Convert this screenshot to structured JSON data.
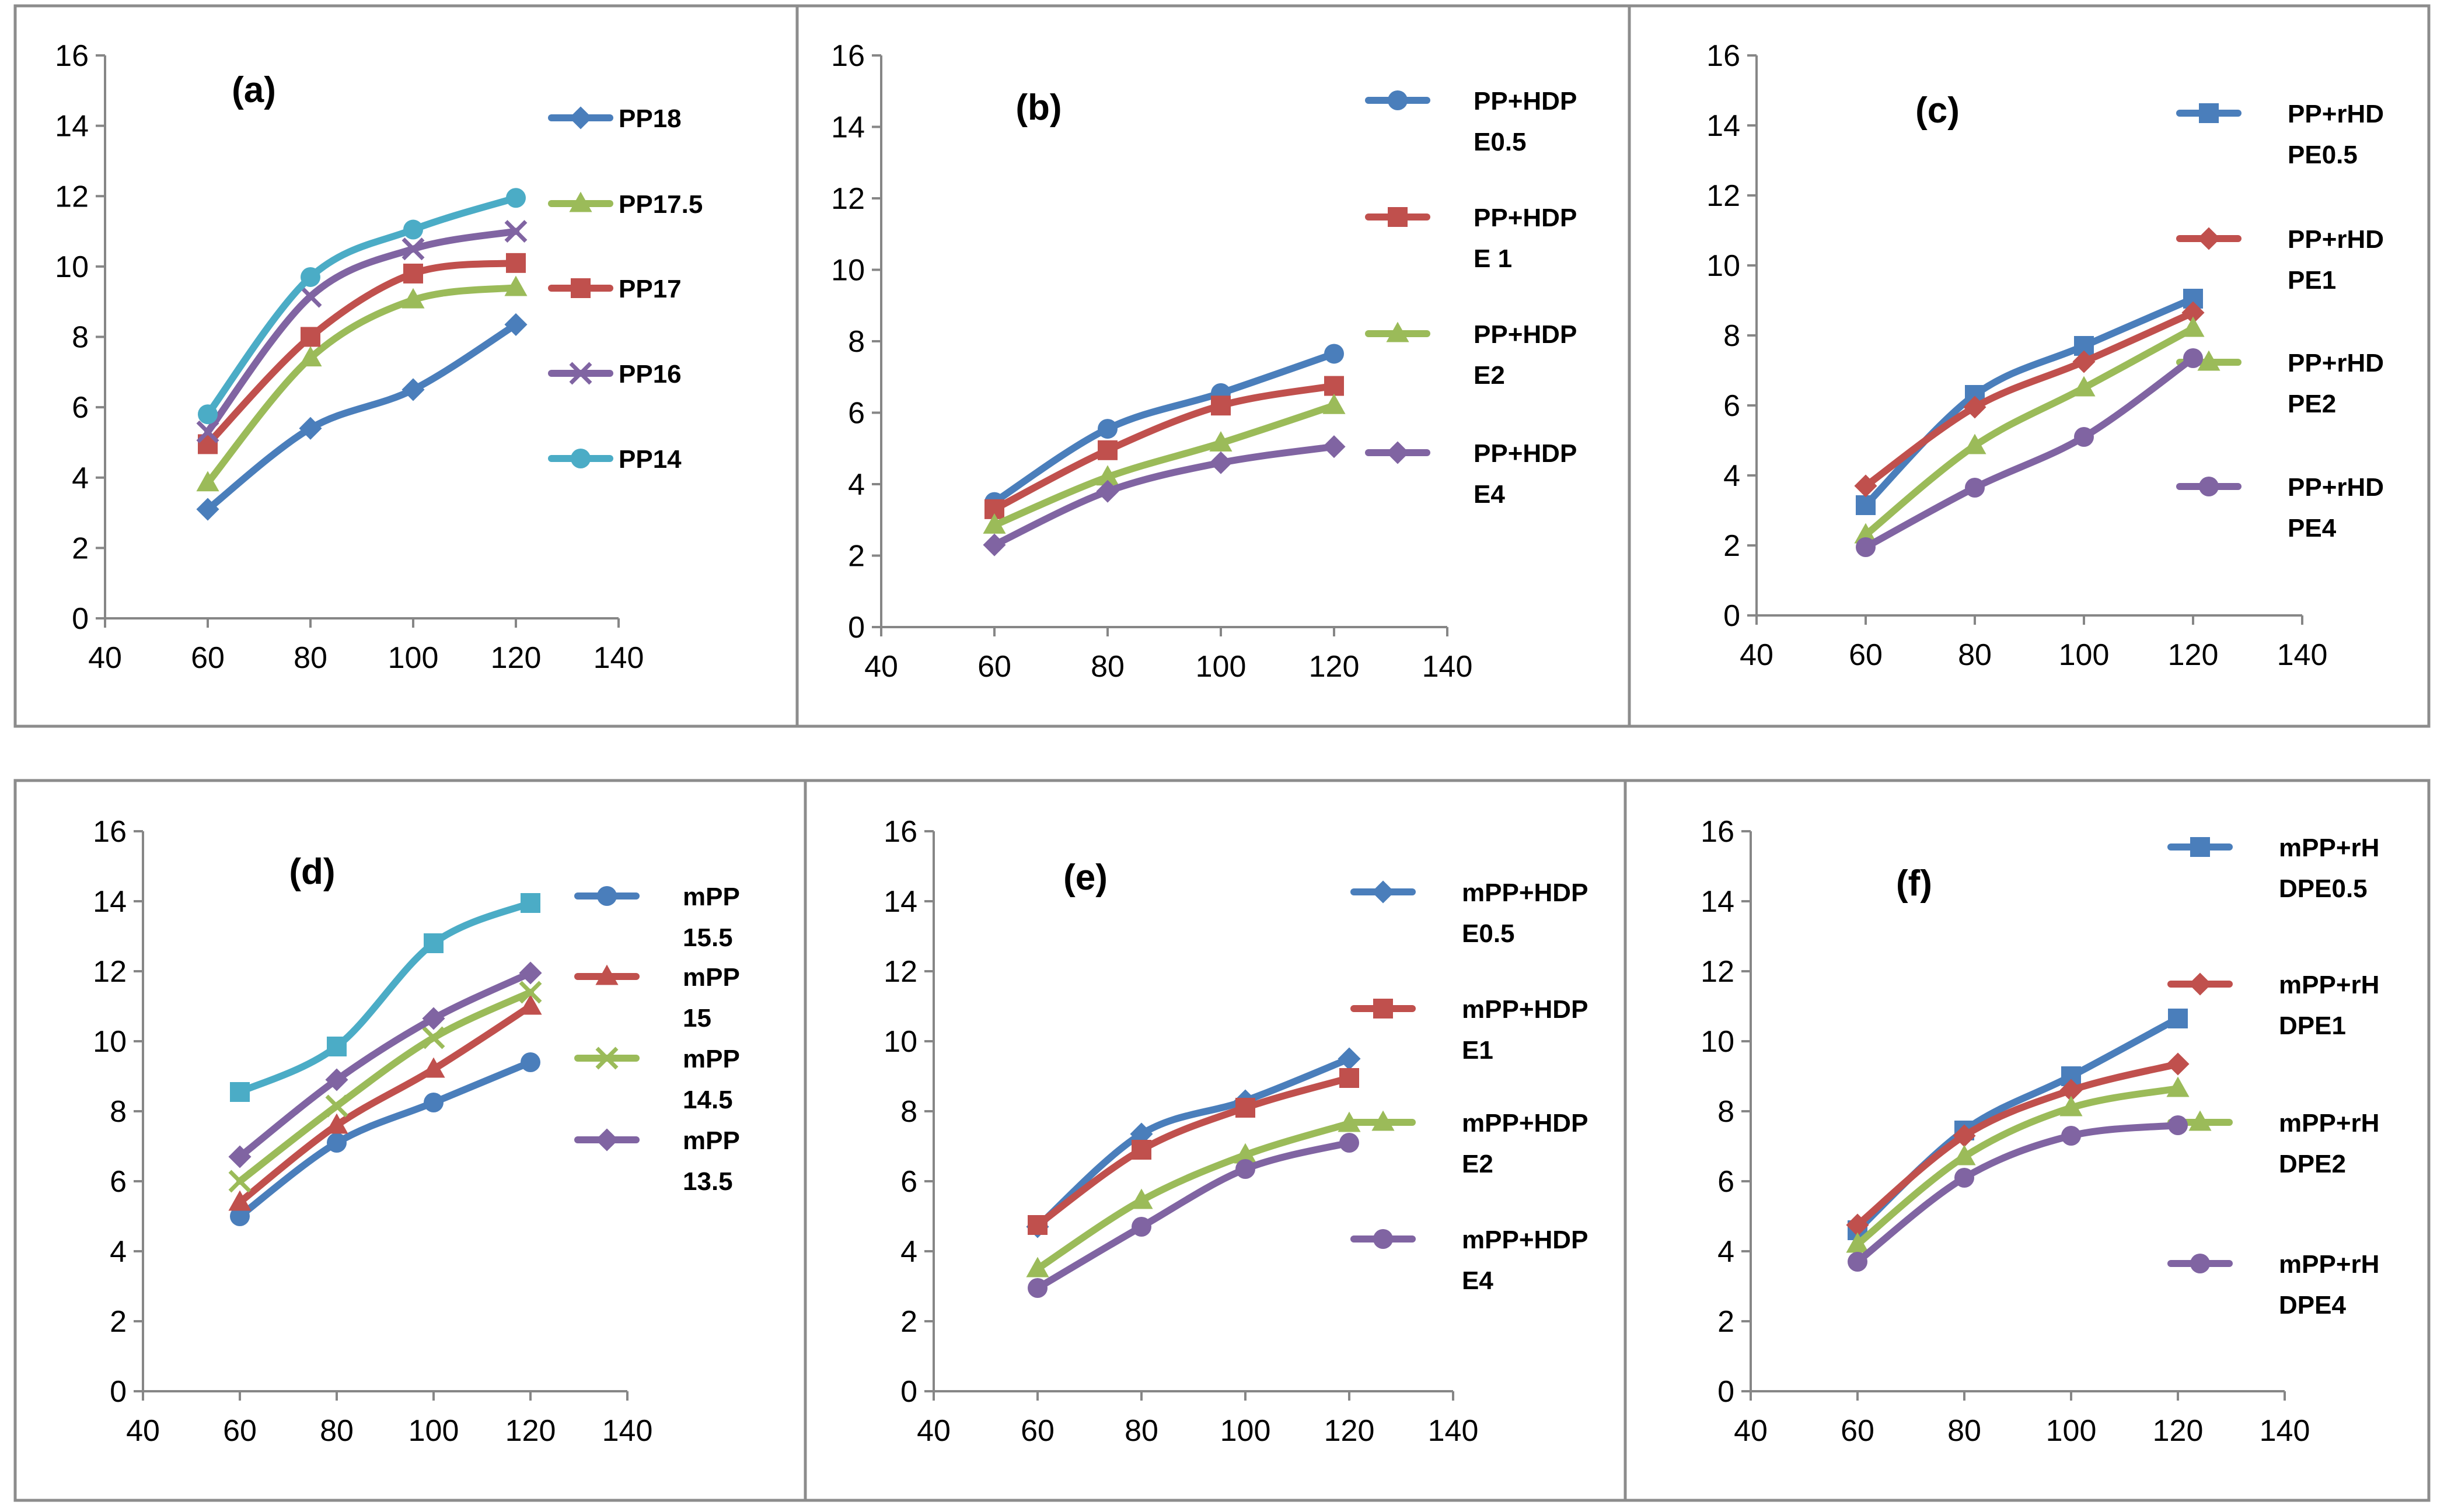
{
  "chart_data": [
    {
      "type": "line",
      "title": "(a)",
      "x": [
        60,
        80,
        100,
        120
      ],
      "xlim": [
        40,
        140
      ],
      "xticks": [
        40,
        60,
        80,
        100,
        120,
        140
      ],
      "ylim": [
        0,
        16
      ],
      "yticks": [
        0,
        2,
        4,
        6,
        8,
        10,
        12,
        14,
        16
      ],
      "xlabel": "",
      "ylabel": "",
      "grid": false,
      "legend": "right",
      "series": [
        {
          "name": "PP18",
          "label_lines": [
            "PP18"
          ],
          "color": "#4A7EBB",
          "marker": "diamond",
          "values": [
            3.1,
            5.4,
            6.5,
            8.35
          ]
        },
        {
          "name": "PP17.5",
          "label_lines": [
            "PP17.5"
          ],
          "color": "#9BBB59",
          "marker": "triangle",
          "values": [
            3.85,
            7.4,
            9.05,
            9.4
          ]
        },
        {
          "name": "PP17",
          "label_lines": [
            "PP17"
          ],
          "color": "#C0504D",
          "marker": "square",
          "values": [
            4.95,
            8.0,
            9.8,
            10.1
          ]
        },
        {
          "name": "PP16",
          "label_lines": [
            "PP16"
          ],
          "color": "#8064A2",
          "marker": "x",
          "values": [
            5.3,
            9.15,
            10.5,
            11.0
          ]
        },
        {
          "name": "PP14",
          "label_lines": [
            "PP14"
          ],
          "color": "#4BACC6",
          "marker": "circle",
          "values": [
            5.8,
            9.7,
            11.05,
            11.95
          ]
        }
      ]
    },
    {
      "type": "line",
      "title": "(b)",
      "x": [
        60,
        80,
        100,
        120
      ],
      "xlim": [
        40,
        140
      ],
      "xticks": [
        40,
        60,
        80,
        100,
        120,
        140
      ],
      "ylim": [
        0,
        16
      ],
      "yticks": [
        0,
        2,
        4,
        6,
        8,
        10,
        12,
        14,
        16
      ],
      "xlabel": "",
      "ylabel": "",
      "grid": false,
      "legend": "right",
      "series": [
        {
          "name": "PP+HDPE0.5",
          "label_lines": [
            "PP+HDP",
            "E0.5"
          ],
          "color": "#4A7EBB",
          "marker": "circle",
          "values": [
            3.5,
            5.55,
            6.55,
            7.65
          ]
        },
        {
          "name": "PP+HDPE 1",
          "label_lines": [
            "PP+HDP",
            "E 1"
          ],
          "color": "#C0504D",
          "marker": "square",
          "values": [
            3.3,
            4.95,
            6.2,
            6.75
          ]
        },
        {
          "name": "PP+HDPE2",
          "label_lines": [
            "PP+HDP",
            "E2"
          ],
          "color": "#9BBB59",
          "marker": "triangle",
          "values": [
            2.85,
            4.2,
            5.15,
            6.2
          ]
        },
        {
          "name": "PP+HDPE4",
          "label_lines": [
            "PP+HDP",
            "E4"
          ],
          "color": "#8064A2",
          "marker": "diamond",
          "values": [
            2.3,
            3.8,
            4.6,
            5.05
          ]
        }
      ]
    },
    {
      "type": "line",
      "title": "(c)",
      "x": [
        60,
        80,
        100,
        120
      ],
      "xlim": [
        40,
        140
      ],
      "xticks": [
        40,
        60,
        80,
        100,
        120,
        140
      ],
      "ylim": [
        0,
        16
      ],
      "yticks": [
        0,
        2,
        4,
        6,
        8,
        10,
        12,
        14,
        16
      ],
      "xlabel": "",
      "ylabel": "",
      "grid": false,
      "legend": "right",
      "series": [
        {
          "name": "PP+rHDPE0.5",
          "label_lines": [
            "PP+rHD",
            "PE0.5"
          ],
          "color": "#4A7EBB",
          "marker": "square",
          "values": [
            3.15,
            6.3,
            7.7,
            9.05
          ]
        },
        {
          "name": "PP+rHDPE1",
          "label_lines": [
            "PP+rHD",
            "PE1"
          ],
          "color": "#C0504D",
          "marker": "diamond",
          "values": [
            3.7,
            5.95,
            7.25,
            8.65
          ]
        },
        {
          "name": "PP+rHDPE2",
          "label_lines": [
            "PP+rHD",
            "PE2"
          ],
          "color": "#9BBB59",
          "marker": "triangle",
          "values": [
            2.3,
            4.85,
            6.5,
            8.2
          ]
        },
        {
          "name": "PP+rHDPE4",
          "label_lines": [
            "PP+rHD",
            "PE4"
          ],
          "color": "#8064A2",
          "marker": "circle",
          "values": [
            1.95,
            3.65,
            5.1,
            7.35
          ]
        }
      ]
    },
    {
      "type": "line",
      "title": "(d)",
      "x": [
        60,
        80,
        100,
        120
      ],
      "xlim": [
        40,
        140
      ],
      "xticks": [
        40,
        60,
        80,
        100,
        120,
        140
      ],
      "ylim": [
        0,
        16
      ],
      "yticks": [
        0,
        2,
        4,
        6,
        8,
        10,
        12,
        14,
        16
      ],
      "xlabel": "",
      "ylabel": "",
      "grid": false,
      "legend": "right",
      "series": [
        {
          "name": "mPP 15.5",
          "label_lines": [
            "mPP",
            "15.5"
          ],
          "color": "#4A7EBB",
          "marker": "circle",
          "values": [
            5.0,
            7.1,
            8.25,
            9.4
          ]
        },
        {
          "name": "mPP 15",
          "label_lines": [
            "mPP",
            "15"
          ],
          "color": "#C0504D",
          "marker": "triangle",
          "values": [
            5.4,
            7.6,
            9.2,
            11.0
          ]
        },
        {
          "name": "mPP 14.5",
          "label_lines": [
            "mPP",
            "14.5"
          ],
          "color": "#9BBB59",
          "marker": "x",
          "values": [
            6.0,
            8.15,
            10.1,
            11.4
          ]
        },
        {
          "name": "mPP 13.5",
          "label_lines": [
            "mPP",
            "13.5"
          ],
          "color": "#8064A2",
          "marker": "diamond",
          "values": [
            6.7,
            8.9,
            10.65,
            11.95
          ]
        },
        {
          "name": "",
          "label_lines": [],
          "color": "#4BACC6",
          "marker": "square",
          "values": [
            8.55,
            9.85,
            12.8,
            13.95
          ]
        }
      ]
    },
    {
      "type": "line",
      "title": "(e)",
      "x": [
        60,
        80,
        100,
        120
      ],
      "xlim": [
        40,
        140
      ],
      "xticks": [
        40,
        60,
        80,
        100,
        120,
        140
      ],
      "ylim": [
        0,
        16
      ],
      "yticks": [
        0,
        2,
        4,
        6,
        8,
        10,
        12,
        14,
        16
      ],
      "xlabel": "",
      "ylabel": "",
      "grid": false,
      "legend": "right",
      "series": [
        {
          "name": "mPP+HDPE0.5",
          "label_lines": [
            "mPP+HDP",
            "E0.5"
          ],
          "color": "#4A7EBB",
          "marker": "diamond",
          "values": [
            4.7,
            7.35,
            8.3,
            9.5
          ]
        },
        {
          "name": "mPP+HDPE1",
          "label_lines": [
            "mPP+HDP",
            "E1"
          ],
          "color": "#C0504D",
          "marker": "square",
          "values": [
            4.75,
            6.9,
            8.1,
            8.95
          ]
        },
        {
          "name": "mPP+HDPE2",
          "label_lines": [
            "mPP+HDP",
            "E2"
          ],
          "color": "#9BBB59",
          "marker": "triangle",
          "values": [
            3.5,
            5.45,
            6.75,
            7.65
          ]
        },
        {
          "name": "mPP+HDPE4",
          "label_lines": [
            "mPP+HDP",
            "E4"
          ],
          "color": "#8064A2",
          "marker": "circle",
          "values": [
            2.95,
            4.7,
            6.35,
            7.1
          ]
        }
      ]
    },
    {
      "type": "line",
      "title": "(f)",
      "x": [
        60,
        80,
        100,
        120
      ],
      "xlim": [
        40,
        140
      ],
      "xticks": [
        40,
        60,
        80,
        100,
        120,
        140
      ],
      "ylim": [
        0,
        16
      ],
      "yticks": [
        0,
        2,
        4,
        6,
        8,
        10,
        12,
        14,
        16
      ],
      "xlabel": "",
      "ylabel": "",
      "grid": false,
      "legend": "right",
      "series": [
        {
          "name": "mPP+rHDPE0.5",
          "label_lines": [
            "mPP+rH",
            "DPE0.5"
          ],
          "color": "#4A7EBB",
          "marker": "square",
          "values": [
            4.6,
            7.45,
            9.0,
            10.65
          ]
        },
        {
          "name": "mPP+rHDPE1",
          "label_lines": [
            "mPP+rH",
            "DPE1"
          ],
          "color": "#C0504D",
          "marker": "diamond",
          "values": [
            4.75,
            7.3,
            8.6,
            9.35
          ]
        },
        {
          "name": "mPP+rHDPE2",
          "label_lines": [
            "mPP+rH",
            "DPE2"
          ],
          "color": "#9BBB59",
          "marker": "triangle",
          "values": [
            4.2,
            6.7,
            8.1,
            8.65
          ]
        },
        {
          "name": "mPP+rHDPE4",
          "label_lines": [
            "mPP+rH",
            "DPE4"
          ],
          "color": "#8064A2",
          "marker": "circle",
          "values": [
            3.7,
            6.1,
            7.3,
            7.6
          ]
        }
      ]
    }
  ]
}
